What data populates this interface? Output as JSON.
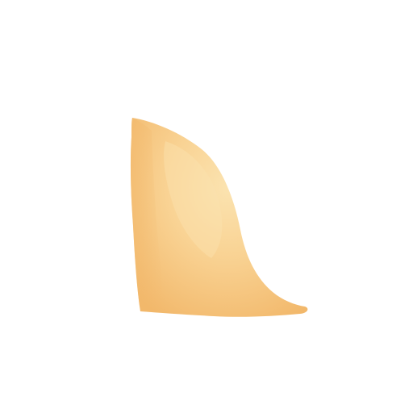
{
  "canvas": {
    "background_color": "#ffffff"
  },
  "shape": {
    "name": "sail-shaped-blob",
    "colors": {
      "base": "#F7C37A",
      "highlight": "#FBE3B0",
      "mid": "#F9D394",
      "edge": "#F2B86B"
    }
  }
}
